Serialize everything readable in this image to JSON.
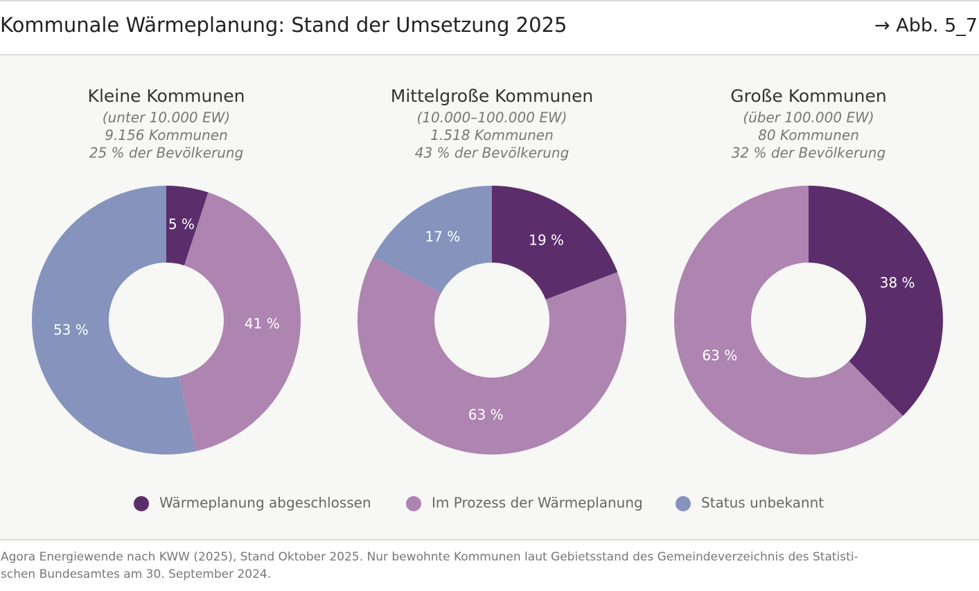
{
  "title": "Kommunale Wärmeplanung: Stand der Umsetzung 2025",
  "figure_ref": "→ Abb. 5_7",
  "legend": [
    {
      "name": "Wärmeplanung abgeschlossen",
      "color": "#5c2d6b"
    },
    {
      "name": "Im Prozess der Wärmeplanung",
      "color": "#ad85b0"
    },
    {
      "name": "Status unbekannt",
      "color": "#8593bd"
    }
  ],
  "source": [
    "Agora Energiewende nach KWW (2025), Stand Oktober 2025. Nur bewohnte Kommunen laut Gebietsstand des Gemeindeverzeichnis des Statisti-",
    "schen Bundesamtes am 30. September 2024."
  ],
  "chart_data": [
    {
      "type": "donut",
      "title": "Kleine Kommunen",
      "subtitle": [
        "(unter 10.000 EW)",
        "9.156 Kommunen",
        "25 % der Bevölkerung"
      ],
      "values": [
        5,
        41,
        53
      ],
      "value_labels": [
        "5 %",
        "41 %",
        "53 %"
      ],
      "colors": [
        "#5c2d6b",
        "#ad85b0",
        "#8593bd"
      ]
    },
    {
      "type": "donut",
      "title": "Mittelgroße Kommunen",
      "subtitle": [
        "(10.000–100.000 EW)",
        "1.518 Kommunen",
        "43 % der Bevölkerung"
      ],
      "values": [
        19,
        63,
        17
      ],
      "value_labels": [
        "19 %",
        "63 %",
        "17 %"
      ],
      "colors": [
        "#5c2d6b",
        "#ad85b0",
        "#8593bd"
      ]
    },
    {
      "type": "donut",
      "title": "Große Kommunen",
      "subtitle": [
        "(über 100.000 EW)",
        "80 Kommunen",
        "32 % der Bevölkerung"
      ],
      "values": [
        38,
        63
      ],
      "value_labels": [
        "38 %",
        "63 %"
      ],
      "colors": [
        "#5c2d6b",
        "#ad85b0"
      ]
    }
  ]
}
